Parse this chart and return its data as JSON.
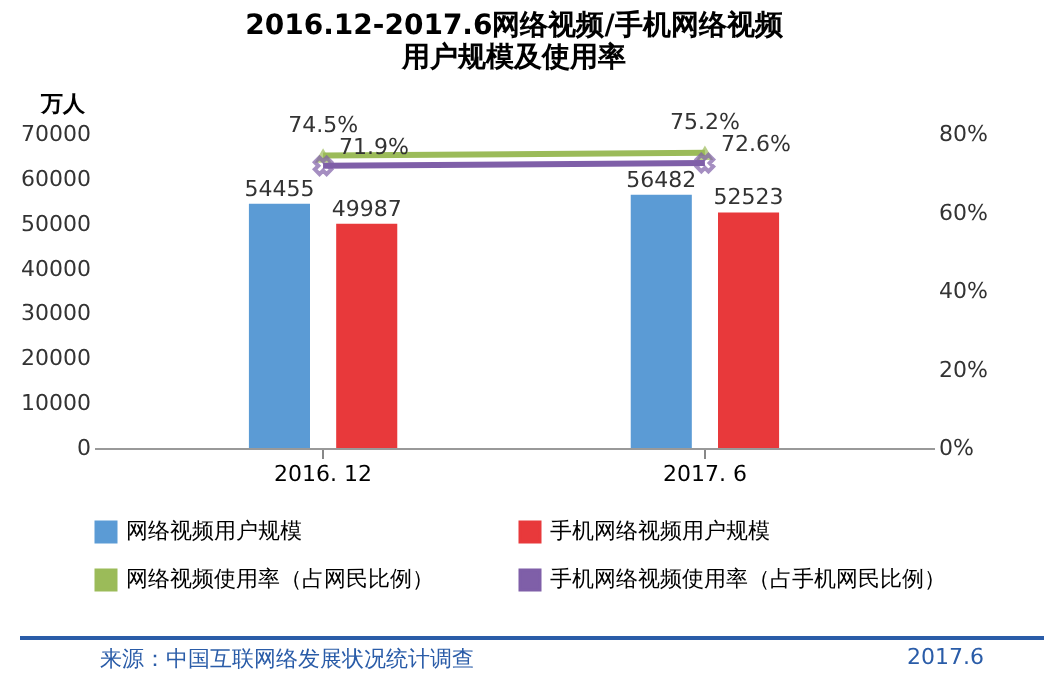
{
  "chart_data": {
    "type": "bar",
    "title": "2016.12-2017.6网络视频/手机网络视频用户规模及使用率",
    "ylabel": "万人",
    "categories": [
      "2016. 12",
      "2017. 6"
    ],
    "series": [
      {
        "name": "网络视频用户规模",
        "color": "#5b9bd5",
        "values": [
          54455,
          56482
        ],
        "value_labels": [
          "54455",
          "56482"
        ]
      },
      {
        "name": "手机网络视频用户规模",
        "color": "#e8393b",
        "values": [
          49987,
          52523
        ],
        "value_labels": [
          "49987",
          "52523"
        ]
      },
      {
        "name": "网络视频使用率（占网民比例）",
        "type": "line",
        "axis": "y2",
        "marker": "triangle",
        "color": "#9bbb59",
        "values": [
          74.5,
          75.2
        ],
        "value_labels": [
          "74.5%",
          "75.2%"
        ]
      },
      {
        "name": "手机网络视频使用率（占手机网民比例）",
        "type": "line",
        "axis": "y2",
        "marker": "cross",
        "color": "#7f5fa8",
        "values": [
          71.9,
          72.6
        ],
        "value_labels": [
          "71.9%",
          "72.6%"
        ]
      }
    ],
    "ylim": [
      0,
      70000
    ],
    "yticks": [
      0,
      10000,
      20000,
      30000,
      40000,
      50000,
      60000,
      70000
    ],
    "y2lim": [
      0,
      80
    ],
    "y2ticks": [
      {
        "value": 0,
        "label": "0%"
      },
      {
        "value": 20,
        "label": "20%"
      },
      {
        "value": 40,
        "label": "40%"
      },
      {
        "value": 60,
        "label": "60%"
      },
      {
        "value": 80,
        "label": "80%"
      }
    ],
    "legend": "bottom",
    "grid": false,
    "annotations": [
      "来源：中国互联网络发展状况统计调查",
      "2017.6"
    ]
  }
}
